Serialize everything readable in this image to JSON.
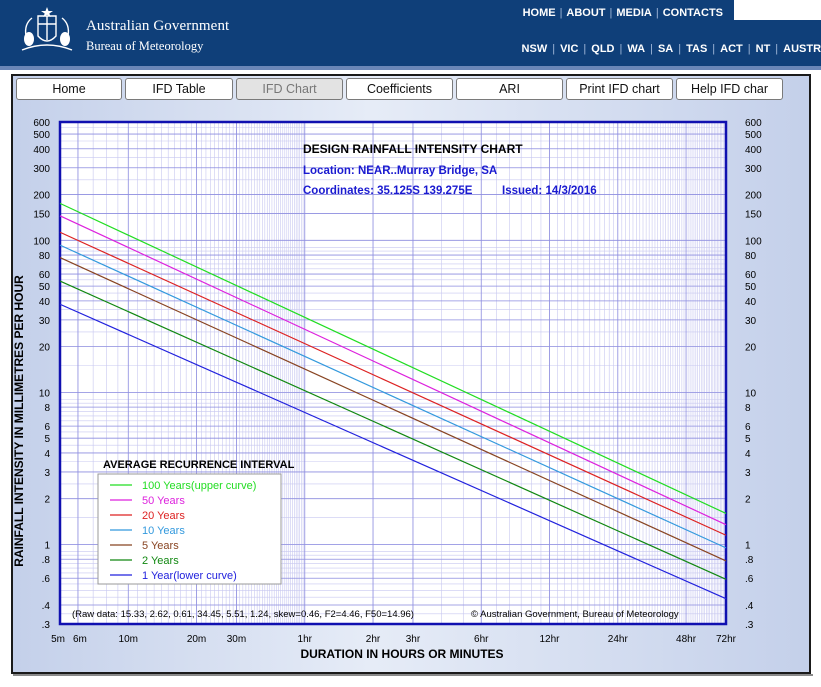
{
  "header": {
    "gov_title": "Australian Government",
    "bom_title": "Bureau of Meteorology",
    "top_links": [
      "HOME",
      "ABOUT",
      "MEDIA",
      "CONTACTS"
    ],
    "state_links": [
      "NSW",
      "VIC",
      "QLD",
      "WA",
      "SA",
      "TAS",
      "ACT",
      "NT",
      "AUSTRA"
    ],
    "bg_color": "#0f3f79"
  },
  "tabs": [
    {
      "label": "Home",
      "active": false
    },
    {
      "label": "IFD Table",
      "active": false
    },
    {
      "label": "IFD Chart",
      "active": true
    },
    {
      "label": "Coefficients",
      "active": false
    },
    {
      "label": "ARI",
      "active": false
    },
    {
      "label": "Print IFD chart",
      "active": false
    },
    {
      "label": "Help IFD char",
      "active": false
    }
  ],
  "chart_data": {
    "type": "line",
    "title": "DESIGN RAINFALL INTENSITY CHART",
    "location": "Location:  NEAR..Murray Bridge, SA",
    "coordinates": "Coordinates: 35.125S  139.275E",
    "issued": "Issued: 14/3/2016",
    "xlabel": "DURATION IN HOURS OR MINUTES",
    "ylabel": "RAINFALL INTENSITY IN MILLIMETRES PER HOUR",
    "x_scale": "log",
    "y_scale": "log",
    "x_unit": "minutes",
    "xlim": [
      5,
      4320
    ],
    "ylim": [
      0.3,
      600
    ],
    "x_ticks": [
      {
        "value": 5,
        "label": "5m"
      },
      {
        "value": 6,
        "label": "6m"
      },
      {
        "value": 10,
        "label": "10m"
      },
      {
        "value": 20,
        "label": "20m"
      },
      {
        "value": 30,
        "label": "30m"
      },
      {
        "value": 60,
        "label": "1hr"
      },
      {
        "value": 120,
        "label": "2hr"
      },
      {
        "value": 180,
        "label": "3hr"
      },
      {
        "value": 360,
        "label": "6hr"
      },
      {
        "value": 720,
        "label": "12hr"
      },
      {
        "value": 1440,
        "label": "24hr"
      },
      {
        "value": 2880,
        "label": "48hr"
      },
      {
        "value": 4320,
        "label": "72hr"
      }
    ],
    "y_ticks": [
      {
        "value": 600,
        "label": "600"
      },
      {
        "value": 500,
        "label": "500"
      },
      {
        "value": 400,
        "label": "400"
      },
      {
        "value": 300,
        "label": "300"
      },
      {
        "value": 200,
        "label": "200"
      },
      {
        "value": 150,
        "label": "150"
      },
      {
        "value": 100,
        "label": "100"
      },
      {
        "value": 80,
        "label": "80"
      },
      {
        "value": 60,
        "label": "60"
      },
      {
        "value": 50,
        "label": "50"
      },
      {
        "value": 40,
        "label": "40"
      },
      {
        "value": 30,
        "label": "30"
      },
      {
        "value": 20,
        "label": "20"
      },
      {
        "value": 10,
        "label": "10"
      },
      {
        "value": 8,
        "label": "8"
      },
      {
        "value": 6,
        "label": "6"
      },
      {
        "value": 5,
        "label": "5"
      },
      {
        "value": 4,
        "label": "4"
      },
      {
        "value": 3,
        "label": "3"
      },
      {
        "value": 2,
        "label": "2"
      },
      {
        "value": 1,
        "label": "1"
      },
      {
        "value": 0.8,
        "label": ".8"
      },
      {
        "value": 0.6,
        "label": ".6"
      },
      {
        "value": 0.4,
        "label": ".4"
      },
      {
        "value": 0.3,
        "label": ".3"
      }
    ],
    "legend_title": "AVERAGE RECURRENCE INTERVAL",
    "legend_position": "bottom-left",
    "grid": true,
    "series": [
      {
        "name": "100 Years(upper curve)",
        "color": "#22dd22",
        "x": [
          5,
          4320
        ],
        "y": [
          175,
          1.6
        ]
      },
      {
        "name": "50 Years",
        "color": "#dd22dd",
        "x": [
          5,
          4320
        ],
        "y": [
          145,
          1.35
        ]
      },
      {
        "name": "20 Years",
        "color": "#dd2222",
        "x": [
          5,
          4320
        ],
        "y": [
          113,
          1.15
        ]
      },
      {
        "name": "10 Years",
        "color": "#3399dd",
        "x": [
          5,
          4320
        ],
        "y": [
          93,
          0.95
        ]
      },
      {
        "name": "5 Years",
        "color": "#884422",
        "x": [
          5,
          4320
        ],
        "y": [
          77,
          0.78
        ]
      },
      {
        "name": "2 Years",
        "color": "#118811",
        "x": [
          5,
          4320
        ],
        "y": [
          54,
          0.59
        ]
      },
      {
        "name": "1 Year(lower curve)",
        "color": "#2222dd",
        "x": [
          5,
          4320
        ],
        "y": [
          38,
          0.44
        ]
      }
    ],
    "raw_data_note": "(Raw data: 15.33, 2.62, 0.61, 34.45, 5.51, 1.24, skew=0.46, F2=4.46, F50=14.96)",
    "copyright": "© Australian Government, Bureau of Meteorology"
  }
}
